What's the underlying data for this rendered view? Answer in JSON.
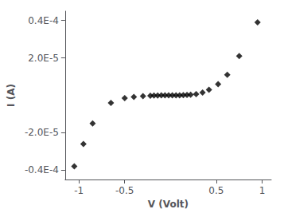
{
  "chart_data": {
    "type": "scatter",
    "x": [
      -1.05,
      -0.95,
      -0.85,
      -0.65,
      -0.5,
      -0.4,
      -0.3,
      -0.22,
      -0.18,
      -0.14,
      -0.1,
      -0.06,
      -0.02,
      0.02,
      0.06,
      0.1,
      0.14,
      0.18,
      0.22,
      0.28,
      0.35,
      0.42,
      0.52,
      0.62,
      0.75,
      0.95
    ],
    "values": [
      -3.8e-05,
      -2.6e-05,
      -1.5e-05,
      -4e-06,
      -1.5e-06,
      -8e-07,
      -4e-07,
      -2e-07,
      -1.5e-07,
      -1e-07,
      -5e-08,
      -2e-08,
      0,
      0,
      2e-08,
      5e-08,
      1e-07,
      2e-07,
      3e-07,
      6e-07,
      1.5e-06,
      3e-06,
      6e-06,
      1.1e-05,
      2.1e-05,
      3.9e-05
    ],
    "marker": "diamond",
    "color": "#000000",
    "xlabel": "V (Volt)",
    "ylabel": "I (A)",
    "xlim": [
      -1.15,
      1.1
    ],
    "ylim": [
      -4.5e-05,
      4.5e-05
    ],
    "xticks": [
      -1,
      -0.5,
      0.5,
      1
    ],
    "yticks": [
      {
        "value": -4e-05,
        "label": "-0.4E-4"
      },
      {
        "value": -2e-05,
        "label": "-2.0E-5"
      },
      {
        "value": 2e-05,
        "label": "2.0E-5"
      },
      {
        "value": 4e-05,
        "label": "0.4E-4"
      }
    ],
    "grid": false
  }
}
